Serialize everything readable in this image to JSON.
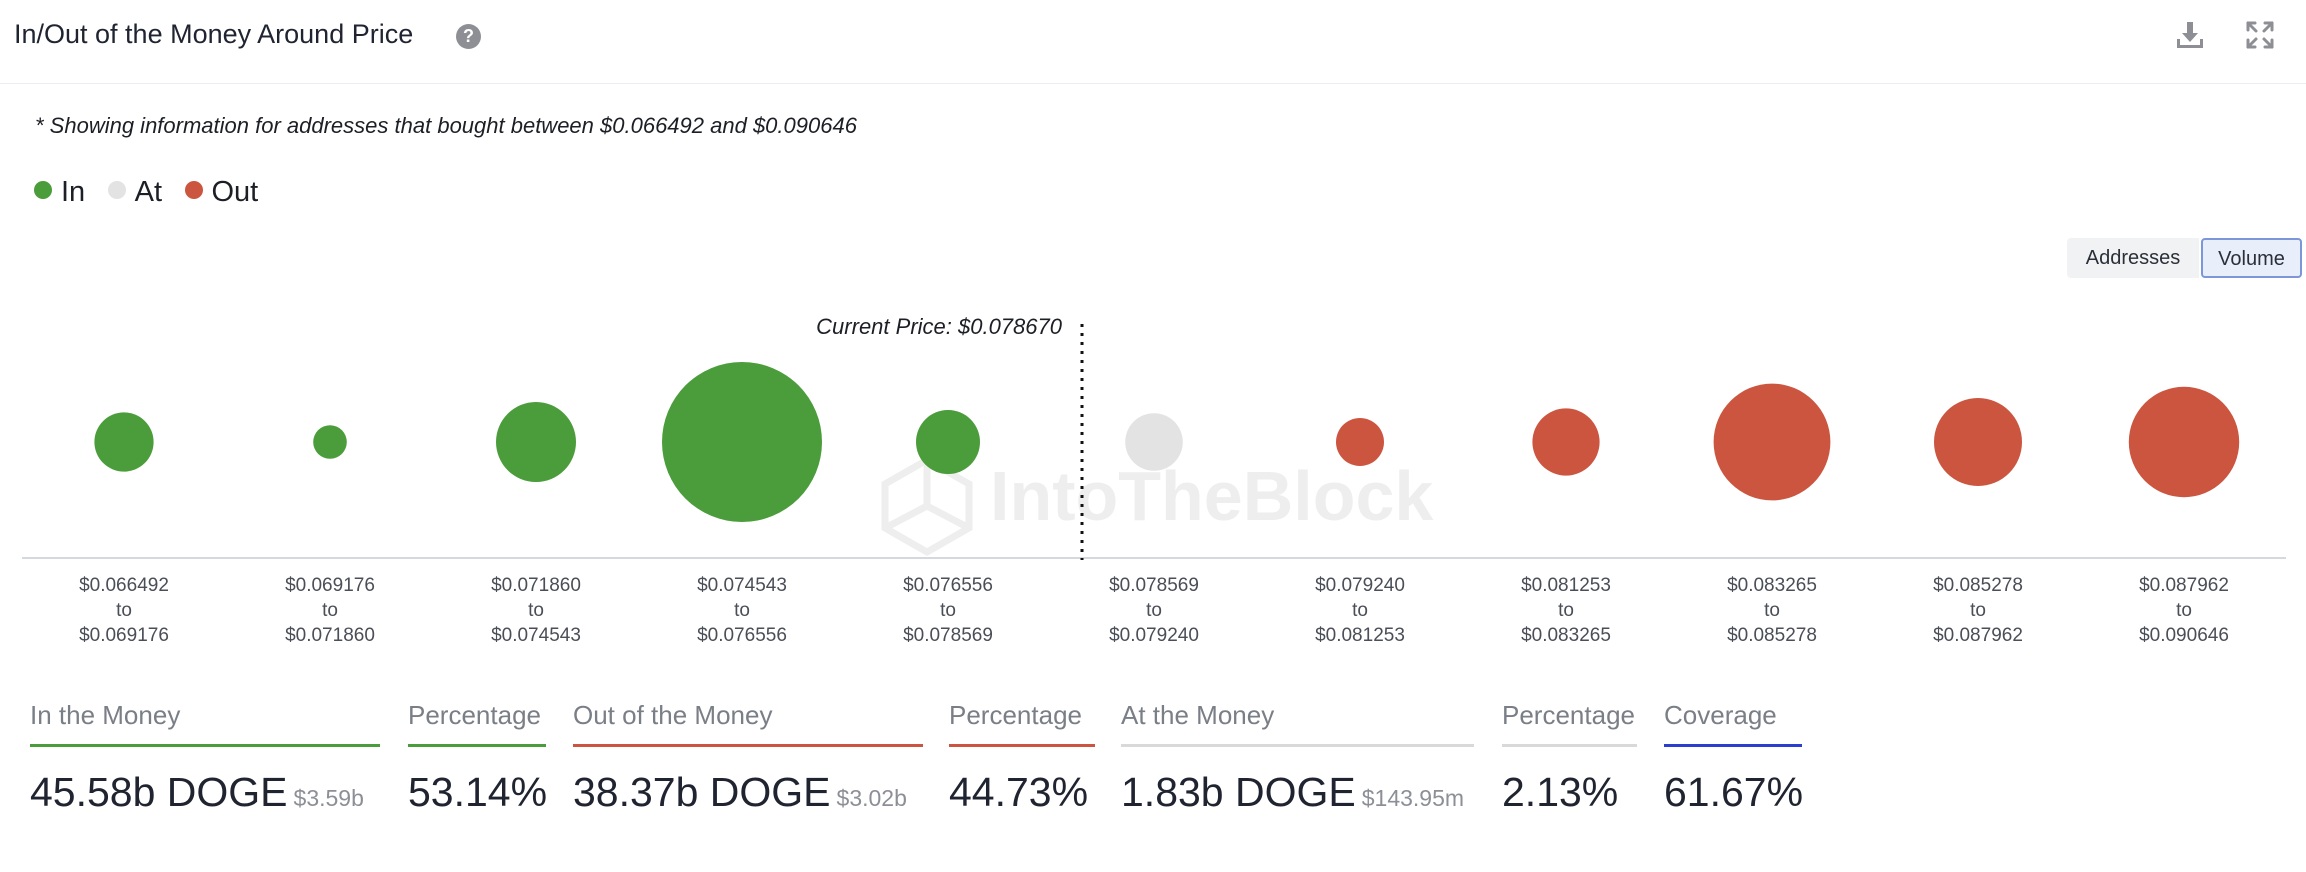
{
  "header": {
    "title": "In/Out of the Money Around Price",
    "help_icon": "?",
    "download_icon": "download-icon",
    "expand_icon": "expand-icon"
  },
  "subtitle": "* Showing information for addresses that bought between $0.066492 and $0.090646",
  "legend": [
    {
      "label": "In",
      "color": "#4a9d3a"
    },
    {
      "label": "At",
      "color": "#e3e3e3"
    },
    {
      "label": "Out",
      "color": "#cc5540"
    }
  ],
  "toggle": {
    "addresses": "Addresses",
    "volume": "Volume",
    "active": "volume"
  },
  "watermark": "IntoTheBlock",
  "colors": {
    "in": "#4a9d3a",
    "at": "#e3e3e3",
    "out": "#cc5540",
    "coverage": "#2a3fd1",
    "at_bar": "#d9d9d9",
    "axis": "#d5d8dd"
  },
  "chart_data": {
    "type": "bubble",
    "title": "In/Out of the Money Around Price",
    "current_price_label": "Current Price: $0.078670",
    "current_price": 0.07867,
    "bins": [
      {
        "from": "$0.066492",
        "to_word": "to",
        "to": "$0.069176",
        "status": "in",
        "relative_size": 0.37
      },
      {
        "from": "$0.069176",
        "to_word": "to",
        "to": "$0.071860",
        "status": "in",
        "relative_size": 0.21
      },
      {
        "from": "$0.071860",
        "to_word": "to",
        "to": "$0.074543",
        "status": "in",
        "relative_size": 0.5
      },
      {
        "from": "$0.074543",
        "to_word": "to",
        "to": "$0.076556",
        "status": "in",
        "relative_size": 1.0
      },
      {
        "from": "$0.076556",
        "to_word": "to",
        "to": "$0.078569",
        "status": "in",
        "relative_size": 0.4
      },
      {
        "from": "$0.078569",
        "to_word": "to",
        "to": "$0.079240",
        "status": "at",
        "relative_size": 0.36
      },
      {
        "from": "$0.079240",
        "to_word": "to",
        "to": "$0.081253",
        "status": "out",
        "relative_size": 0.3
      },
      {
        "from": "$0.081253",
        "to_word": "to",
        "to": "$0.083265",
        "status": "out",
        "relative_size": 0.42
      },
      {
        "from": "$0.083265",
        "to_word": "to",
        "to": "$0.085278",
        "status": "out",
        "relative_size": 0.73
      },
      {
        "from": "$0.085278",
        "to_word": "to",
        "to": "$0.087962",
        "status": "out",
        "relative_size": 0.55
      },
      {
        "from": "$0.087962",
        "to_word": "to",
        "to": "$0.090646",
        "status": "out",
        "relative_size": 0.69
      }
    ]
  },
  "stats": {
    "in": {
      "label": "In the Money",
      "value": "45.58b DOGE",
      "sub": "$3.59b"
    },
    "in_pct": {
      "label": "Percentage",
      "value": "53.14%"
    },
    "out": {
      "label": "Out of the Money",
      "value": "38.37b DOGE",
      "sub": "$3.02b"
    },
    "out_pct": {
      "label": "Percentage",
      "value": "44.73%"
    },
    "at": {
      "label": "At the Money",
      "value": "1.83b DOGE",
      "sub": "$143.95m"
    },
    "at_pct": {
      "label": "Percentage",
      "value": "2.13%"
    },
    "coverage": {
      "label": "Coverage",
      "value": "61.67%"
    }
  }
}
